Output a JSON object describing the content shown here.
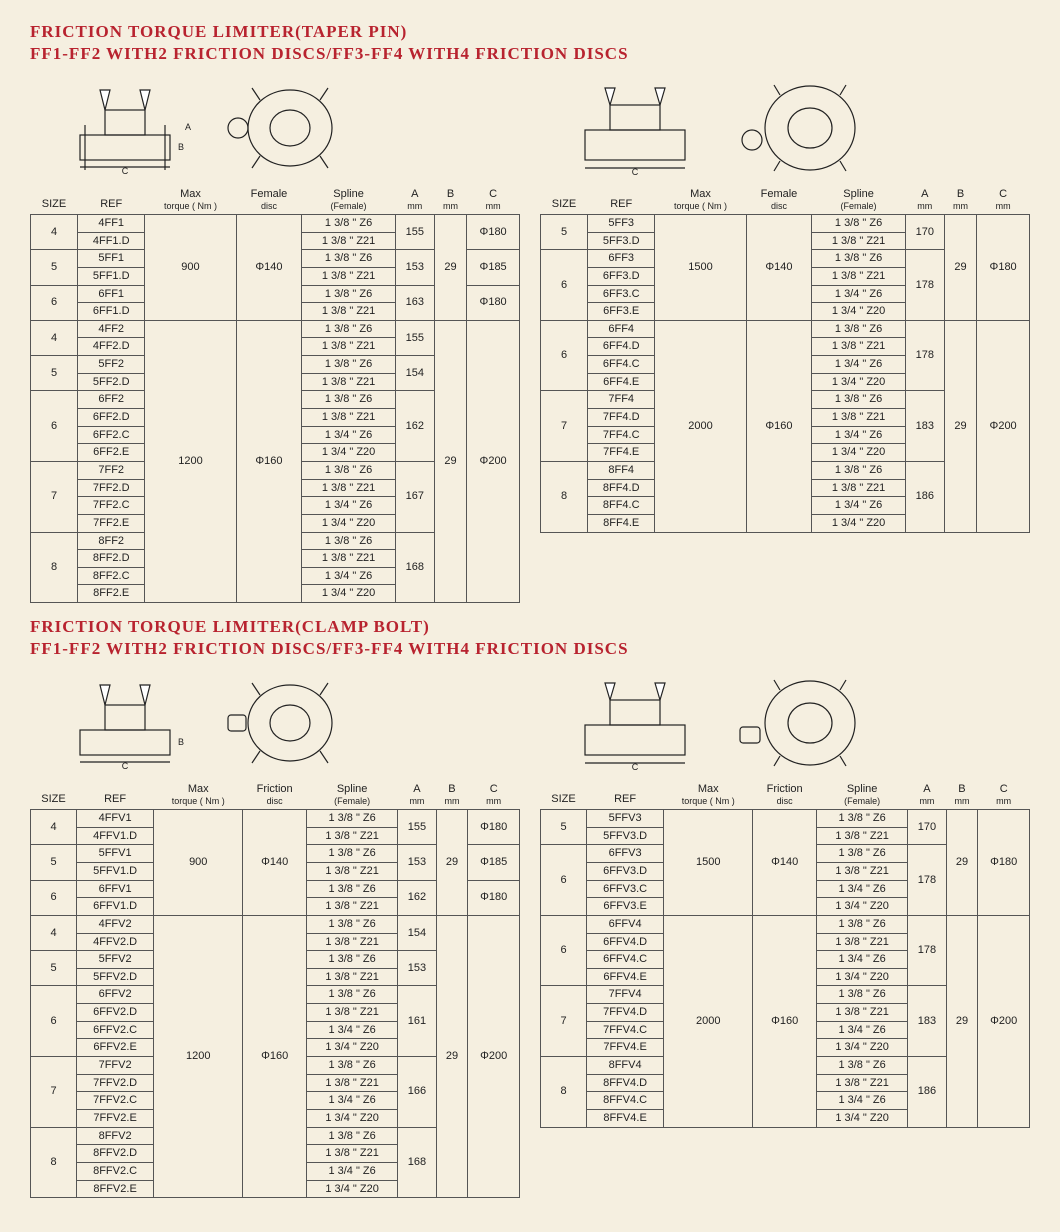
{
  "colors": {
    "heading": "#b8232f",
    "border": "#555555",
    "bg": "#f5efe0"
  },
  "section1": {
    "title1": "FRICTION TORQUE LIMITER(TAPER PIN)",
    "title2": "FF1-FF2 WITH2 FRICTION DISCS/FF3-FF4 WITH4 FRICTION DISCS",
    "left": {
      "headers": [
        "SIZE",
        "REF",
        "Max torque ( Nm )",
        "Female disc",
        "Spline (Female)",
        "A mm",
        "B mm",
        "C mm"
      ],
      "rows": [
        {
          "size": "4",
          "refs": [
            "4FF1",
            "4FF1.D"
          ],
          "torque": "900",
          "disc": "Φ140",
          "spline": [
            "1 3/8 \" Z6",
            "1 3/8 \" Z21"
          ],
          "A": "155",
          "B": "29",
          "C": "Φ180"
        },
        {
          "size": "5",
          "refs": [
            "5FF1",
            "5FF1.D"
          ],
          "torque": "900",
          "disc": "Φ140",
          "spline": [
            "1 3/8 \" Z6",
            "1 3/8 \" Z21"
          ],
          "A": "153",
          "B": "29",
          "C": "Φ185"
        },
        {
          "size": "6",
          "refs": [
            "6FF1",
            "6FF1.D"
          ],
          "torque": "900",
          "disc": "Φ140",
          "spline": [
            "1 3/8 \" Z6",
            "1 3/8 \" Z21"
          ],
          "A": "163",
          "B": "29",
          "C": "Φ180"
        },
        {
          "size": "4",
          "refs": [
            "4FF2",
            "4FF2.D"
          ],
          "torque": "1200",
          "disc": "Φ160",
          "spline": [
            "1 3/8 \" Z6",
            "1 3/8 \" Z21"
          ],
          "A": "155",
          "B": "29",
          "C": "Φ200"
        },
        {
          "size": "5",
          "refs": [
            "5FF2",
            "5FF2.D"
          ],
          "torque": "1200",
          "disc": "Φ160",
          "spline": [
            "1 3/8 \" Z6",
            "1 3/8 \" Z21"
          ],
          "A": "154",
          "B": "29",
          "C": "Φ200"
        },
        {
          "size": "6",
          "refs": [
            "6FF2",
            "6FF2.D",
            "6FF2.C",
            "6FF2.E"
          ],
          "torque": "1200",
          "disc": "Φ160",
          "spline": [
            "1 3/8 \" Z6",
            "1 3/8 \" Z21",
            "1 3/4 \" Z6",
            "1 3/4 \" Z20"
          ],
          "A": "162",
          "B": "29",
          "C": "Φ200"
        },
        {
          "size": "7",
          "refs": [
            "7FF2",
            "7FF2.D",
            "7FF2.C",
            "7FF2.E"
          ],
          "torque": "1200",
          "disc": "Φ160",
          "spline": [
            "1 3/8 \" Z6",
            "1 3/8 \" Z21",
            "1 3/4 \" Z6",
            "1 3/4 \" Z20"
          ],
          "A": "167",
          "B": "29",
          "C": "Φ200"
        },
        {
          "size": "8",
          "refs": [
            "8FF2",
            "8FF2.D",
            "8FF2.C",
            "8FF2.E"
          ],
          "torque": "1200",
          "disc": "Φ160",
          "spline": [
            "1 3/8 \" Z6",
            "1 3/8 \" Z21",
            "1 3/4 \" Z6",
            "1 3/4 \" Z20"
          ],
          "A": "168",
          "B": "29",
          "C": "Φ200"
        }
      ],
      "torqueSpans": [
        {
          "from": 0,
          "rows": 6,
          "val": "900"
        },
        {
          "from": 6,
          "rows": 16,
          "val": "1200"
        }
      ],
      "discSpans": [
        {
          "from": 0,
          "rows": 6,
          "val": "Φ140"
        },
        {
          "from": 6,
          "rows": 16,
          "val": "Φ160"
        }
      ],
      "BSpans": [
        {
          "from": 0,
          "rows": 6,
          "val": "29"
        },
        {
          "from": 6,
          "rows": 16,
          "val": "29"
        }
      ],
      "CSpans": [
        {
          "val": "Φ180",
          "rows": 2
        },
        {
          "val": "Φ185",
          "rows": 2
        },
        {
          "val": "Φ180",
          "rows": 2
        },
        {
          "val": "Φ200",
          "rows": 16
        }
      ]
    },
    "right": {
      "headers": [
        "SIZE",
        "REF",
        "Max torque ( Nm )",
        "Female disc",
        "Spline (Female)",
        "A mm",
        "B mm",
        "C mm"
      ],
      "rows": [
        {
          "size": "5",
          "refs": [
            "5FF3",
            "5FF3.D"
          ],
          "spline": [
            "1 3/8 \" Z6",
            "1 3/8 \" Z21"
          ],
          "A": "170"
        },
        {
          "size": "6",
          "refs": [
            "6FF3",
            "6FF3.D",
            "6FF3.C",
            "6FF3.E"
          ],
          "spline": [
            "1 3/8 \" Z6",
            "1 3/8 \" Z21",
            "1 3/4 \" Z6",
            "1 3/4 \" Z20"
          ],
          "A": "178"
        },
        {
          "size": "6",
          "refs": [
            "6FF4",
            "6FF4.D",
            "6FF4.C",
            "6FF4.E"
          ],
          "spline": [
            "1 3/8 \" Z6",
            "1 3/8 \" Z21",
            "1 3/4 \" Z6",
            "1 3/4 \" Z20"
          ],
          "A": "178"
        },
        {
          "size": "7",
          "refs": [
            "7FF4",
            "7FF4.D",
            "7FF4.C",
            "7FF4.E"
          ],
          "spline": [
            "1 3/8 \" Z6",
            "1 3/8 \" Z21",
            "1 3/4 \" Z6",
            "1 3/4 \" Z20"
          ],
          "A": "183"
        },
        {
          "size": "8",
          "refs": [
            "8FF4",
            "8FF4.D",
            "8FF4.C",
            "8FF4.E"
          ],
          "spline": [
            "1 3/8 \" Z6",
            "1 3/8 \" Z21",
            "1 3/4 \" Z6",
            "1 3/4 \" Z20"
          ],
          "A": "186"
        }
      ],
      "torqueSpans": [
        {
          "rows": 6,
          "val": "1500"
        },
        {
          "rows": 12,
          "val": "2000"
        }
      ],
      "discSpans": [
        {
          "rows": 6,
          "val": "Φ140"
        },
        {
          "rows": 12,
          "val": "Φ160"
        }
      ],
      "BSpans": [
        {
          "rows": 6,
          "val": "29"
        },
        {
          "rows": 12,
          "val": "29"
        }
      ],
      "CSpans": [
        {
          "rows": 6,
          "val": "Φ180"
        },
        {
          "rows": 12,
          "val": "Φ200"
        }
      ]
    }
  },
  "section2": {
    "title1": "FRICTION TORQUE LIMITER(CLAMP BOLT)",
    "title2": "FF1-FF2 WITH2 FRICTION DISCS/FF3-FF4 WITH4 FRICTION DISCS",
    "left": {
      "headers": [
        "SIZE",
        "REF",
        "Max torque ( Nm )",
        "Friction disc",
        "Spline (Female)",
        "A mm",
        "B mm",
        "C mm"
      ],
      "rows": [
        {
          "size": "4",
          "refs": [
            "4FFV1",
            "4FFV1.D"
          ],
          "spline": [
            "1 3/8 \" Z6",
            "1 3/8 \" Z21"
          ],
          "A": "155"
        },
        {
          "size": "5",
          "refs": [
            "5FFV1",
            "5FFV1.D"
          ],
          "spline": [
            "1 3/8 \" Z6",
            "1 3/8 \" Z21"
          ],
          "A": "153"
        },
        {
          "size": "6",
          "refs": [
            "6FFV1",
            "6FFV1.D"
          ],
          "spline": [
            "1 3/8 \" Z6",
            "1 3/8 \" Z21"
          ],
          "A": "162"
        },
        {
          "size": "4",
          "refs": [
            "4FFV2",
            "4FFV2.D"
          ],
          "spline": [
            "1 3/8 \" Z6",
            "1 3/8 \" Z21"
          ],
          "A": "154"
        },
        {
          "size": "5",
          "refs": [
            "5FFV2",
            "5FFV2.D"
          ],
          "spline": [
            "1 3/8 \" Z6",
            "1 3/8 \" Z21"
          ],
          "A": "153"
        },
        {
          "size": "6",
          "refs": [
            "6FFV2",
            "6FFV2.D",
            "6FFV2.C",
            "6FFV2.E"
          ],
          "spline": [
            "1 3/8 \" Z6",
            "1 3/8 \" Z21",
            "1 3/4 \" Z6",
            "1 3/4 \" Z20"
          ],
          "A": "161"
        },
        {
          "size": "7",
          "refs": [
            "7FFV2",
            "7FFV2.D",
            "7FFV2.C",
            "7FFV2.E"
          ],
          "spline": [
            "1 3/8 \" Z6",
            "1 3/8 \" Z21",
            "1 3/4 \" Z6",
            "1 3/4 \" Z20"
          ],
          "A": "166"
        },
        {
          "size": "8",
          "refs": [
            "8FFV2",
            "8FFV2.D",
            "8FFV2.C",
            "8FFV2.E"
          ],
          "spline": [
            "1 3/8 \" Z6",
            "1 3/8 \" Z21",
            "1 3/4 \" Z6",
            "1 3/4 \" Z20"
          ],
          "A": "168"
        }
      ],
      "torqueSpans": [
        {
          "rows": 6,
          "val": "900"
        },
        {
          "rows": 16,
          "val": "1200"
        }
      ],
      "discSpans": [
        {
          "rows": 6,
          "val": "Φ140"
        },
        {
          "rows": 16,
          "val": "Φ160"
        }
      ],
      "BSpans": [
        {
          "rows": 6,
          "val": "29"
        },
        {
          "rows": 16,
          "val": "29"
        }
      ],
      "CSpans": [
        {
          "rows": 2,
          "val": "Φ180"
        },
        {
          "rows": 2,
          "val": "Φ185"
        },
        {
          "rows": 2,
          "val": "Φ180"
        },
        {
          "rows": 16,
          "val": "Φ200"
        }
      ]
    },
    "right": {
      "headers": [
        "SIZE",
        "REF",
        "Max torque ( Nm )",
        "Friction disc",
        "Spline (Female)",
        "A mm",
        "B mm",
        "C mm"
      ],
      "rows": [
        {
          "size": "5",
          "refs": [
            "5FFV3",
            "5FFV3.D"
          ],
          "spline": [
            "1 3/8 \" Z6",
            "1 3/8 \" Z21"
          ],
          "A": "170"
        },
        {
          "size": "6",
          "refs": [
            "6FFV3",
            "6FFV3.D",
            "6FFV3.C",
            "6FFV3.E"
          ],
          "spline": [
            "1 3/8 \" Z6",
            "1 3/8 \" Z21",
            "1 3/4 \" Z6",
            "1 3/4 \" Z20"
          ],
          "A": "178"
        },
        {
          "size": "6",
          "refs": [
            "6FFV4",
            "6FFV4.D",
            "6FFV4.C",
            "6FFV4.E"
          ],
          "spline": [
            "1 3/8 \" Z6",
            "1 3/8 \" Z21",
            "1 3/4 \" Z6",
            "1 3/4 \" Z20"
          ],
          "A": "178"
        },
        {
          "size": "7",
          "refs": [
            "7FFV4",
            "7FFV4.D",
            "7FFV4.C",
            "7FFV4.E"
          ],
          "spline": [
            "1 3/8 \" Z6",
            "1 3/8 \" Z21",
            "1 3/4 \" Z6",
            "1 3/4 \" Z20"
          ],
          "A": "183"
        },
        {
          "size": "8",
          "refs": [
            "8FFV4",
            "8FFV4.D",
            "8FFV4.C",
            "8FFV4.E"
          ],
          "spline": [
            "1 3/8 \" Z6",
            "1 3/8 \" Z21",
            "1 3/4 \" Z6",
            "1 3/4 \" Z20"
          ],
          "A": "186"
        }
      ],
      "torqueSpans": [
        {
          "rows": 6,
          "val": "1500"
        },
        {
          "rows": 12,
          "val": "2000"
        }
      ],
      "discSpans": [
        {
          "rows": 6,
          "val": "Φ140"
        },
        {
          "rows": 12,
          "val": "Φ160"
        }
      ],
      "BSpans": [
        {
          "rows": 6,
          "val": "29"
        },
        {
          "rows": 12,
          "val": "29"
        }
      ],
      "CSpans": [
        {
          "rows": 6,
          "val": "Φ180"
        },
        {
          "rows": 12,
          "val": "Φ200"
        }
      ]
    }
  }
}
